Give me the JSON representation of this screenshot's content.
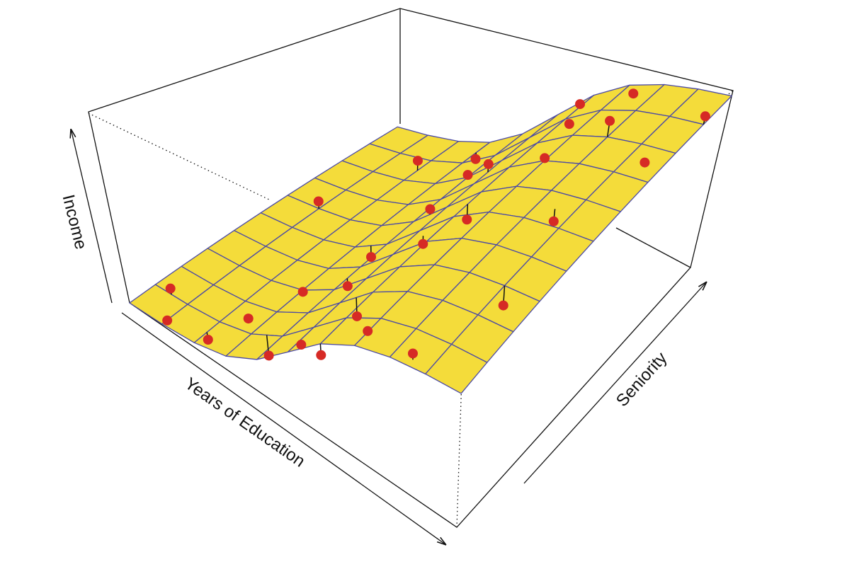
{
  "chart_data": {
    "type": "surface3d",
    "xlabel": "Years of Education",
    "ylabel": "Seniority",
    "zlabel": "Income",
    "xlim": [
      0,
      1
    ],
    "ylim": [
      0,
      1
    ],
    "zlim": [
      0,
      100
    ],
    "surface_color": "#f4dc3a",
    "mesh_color": "#4b4aa6",
    "point_color": "#d62a25",
    "surface": {
      "x": [
        0,
        0.1,
        0.2,
        0.3,
        0.4,
        0.5,
        0.6,
        0.7,
        0.8,
        0.9,
        1
      ],
      "y": [
        0,
        0.1,
        0.2,
        0.3,
        0.4,
        0.5,
        0.6,
        0.7,
        0.8,
        0.9,
        1
      ],
      "z": [
        [
          0,
          2.5,
          5,
          7.5,
          10,
          12.5,
          15,
          17.5,
          20,
          22.5,
          25
        ],
        [
          0.7,
          3.2,
          5.7,
          8.2,
          10.8,
          13.3,
          15.8,
          18.3,
          20.8,
          23.3,
          25.8
        ],
        [
          2.6,
          5.1,
          7.6,
          10.2,
          12.7,
          15.3,
          17.8,
          20.3,
          22.9,
          25.4,
          28.0
        ],
        [
          7.1,
          9.7,
          12.3,
          14.9,
          17.5,
          20.1,
          22.8,
          25.4,
          28.0,
          30.6,
          33.2
        ],
        [
          16.5,
          19.2,
          22.0,
          24.8,
          27.5,
          30.3,
          33.1,
          35.8,
          38.6,
          41.4,
          44.1
        ],
        [
          31,
          34,
          37,
          40,
          43,
          46,
          49,
          52,
          55,
          58,
          61
        ],
        [
          45.5,
          48.8,
          52.0,
          55.2,
          58.5,
          61.7,
          64.9,
          68.2,
          71.4,
          74.6,
          77.9
        ],
        [
          54.9,
          58.3,
          61.7,
          65.1,
          68.5,
          71.9,
          75.2,
          78.6,
          82.0,
          85.4,
          88.8
        ],
        [
          59.4,
          62.9,
          66.4,
          69.8,
          73.3,
          76.7,
          80.2,
          83.6,
          87.1,
          90.6,
          94.0
        ],
        [
          61.3,
          64.8,
          68.3,
          71.8,
          75.2,
          78.7,
          82.2,
          85.7,
          89.2,
          92.7,
          96.2
        ],
        [
          62,
          65.5,
          69,
          72.5,
          76,
          79.5,
          83,
          86.5,
          90,
          93.5,
          97
        ]
      ]
    },
    "points": {
      "x": [
        0.05,
        0.1,
        0.2,
        0.25,
        0.3,
        0.35,
        0.4,
        0.5,
        0.55,
        0.6,
        0.7,
        0.85,
        0.1,
        0.2,
        0.3,
        0.35,
        0.45,
        0.5,
        0.55,
        0.6,
        0.65,
        0.7,
        0.75,
        0.8,
        0.85,
        0.9,
        0.95,
        1.0,
        0.6,
        0.4
      ],
      "y": [
        0.1,
        0.02,
        0.05,
        0.15,
        0.3,
        0.1,
        0.35,
        0.05,
        0.2,
        0.0,
        0.05,
        0.02,
        0.6,
        0.85,
        0.95,
        0.5,
        0.6,
        0.75,
        0.45,
        0.55,
        0.85,
        0.7,
        0.95,
        0.8,
        0.55,
        0.3,
        0.75,
        0.9,
        0.95,
        0.8
      ],
      "z": [
        6,
        1,
        0,
        8,
        14,
        4,
        22,
        30,
        35,
        40,
        57,
        64,
        20,
        30,
        28,
        19,
        44,
        58,
        48,
        55,
        80,
        80,
        92,
        96,
        73,
        62,
        88,
        98,
        78,
        40
      ]
    }
  }
}
